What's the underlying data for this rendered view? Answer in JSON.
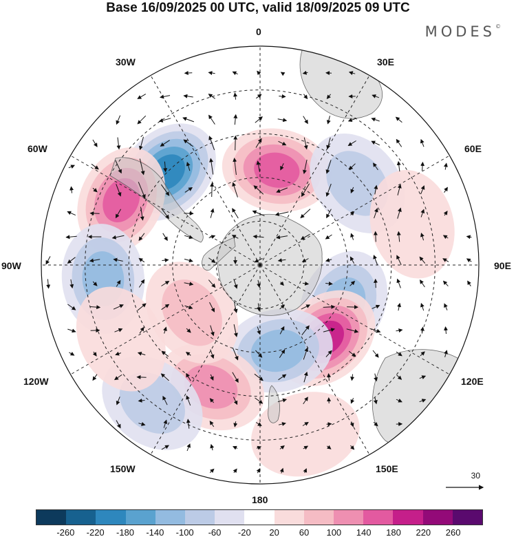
{
  "title": "Base 16/09/2025 00 UTC, valid 18/09/2025 09 UTC",
  "brand": "MODES",
  "brand_mark": "©",
  "lon_labels": {
    "l0": "0",
    "l30e": "30E",
    "l60e": "60E",
    "l90e": "90E",
    "l120e": "120E",
    "l150e": "150E",
    "l180": "180",
    "l150w": "150W",
    "l120w": "120W",
    "l90w": "90W",
    "l60w": "60W",
    "l30w": "30W"
  },
  "reference_vector": "30",
  "colorbar": {
    "colors": [
      "#0d3a5c",
      "#17618f",
      "#2e87bd",
      "#5aa2cf",
      "#93bbe0",
      "#bccbe6",
      "#e0e0f0",
      "#ffffff",
      "#f9dcdc",
      "#f5bcc4",
      "#ee8fb1",
      "#e35aa0",
      "#c51f8a",
      "#930a78",
      "#5a0a6e"
    ],
    "ticks": [
      "-260",
      "-220",
      "-180",
      "-140",
      "-100",
      "-60",
      "-20",
      "20",
      "60",
      "100",
      "140",
      "180",
      "220",
      "260"
    ]
  },
  "anomalies": [
    {
      "lon": 10,
      "r": 0.44,
      "val": 190
    },
    {
      "lon": -45,
      "r": 0.6,
      "val": -210
    },
    {
      "lon": -65,
      "r": 0.7,
      "val": 170
    },
    {
      "lon": 50,
      "r": 0.58,
      "val": -110
    },
    {
      "lon": 75,
      "r": 0.72,
      "val": 60
    },
    {
      "lon": -95,
      "r": 0.72,
      "val": -120
    },
    {
      "lon": 115,
      "r": 0.42,
      "val": -150
    },
    {
      "lon": 138,
      "r": 0.45,
      "val": 220
    },
    {
      "lon": 168,
      "r": 0.4,
      "val": -140
    },
    {
      "lon": -158,
      "r": 0.6,
      "val": 120
    },
    {
      "lon": -142,
      "r": 0.8,
      "val": -110
    },
    {
      "lon": -118,
      "r": 0.72,
      "val": 70
    },
    {
      "lon": -125,
      "r": 0.38,
      "val": 90
    },
    {
      "lon": 165,
      "r": 0.8,
      "val": 40
    },
    {
      "lon": 120,
      "r": 0.85,
      "val": -30
    }
  ]
}
